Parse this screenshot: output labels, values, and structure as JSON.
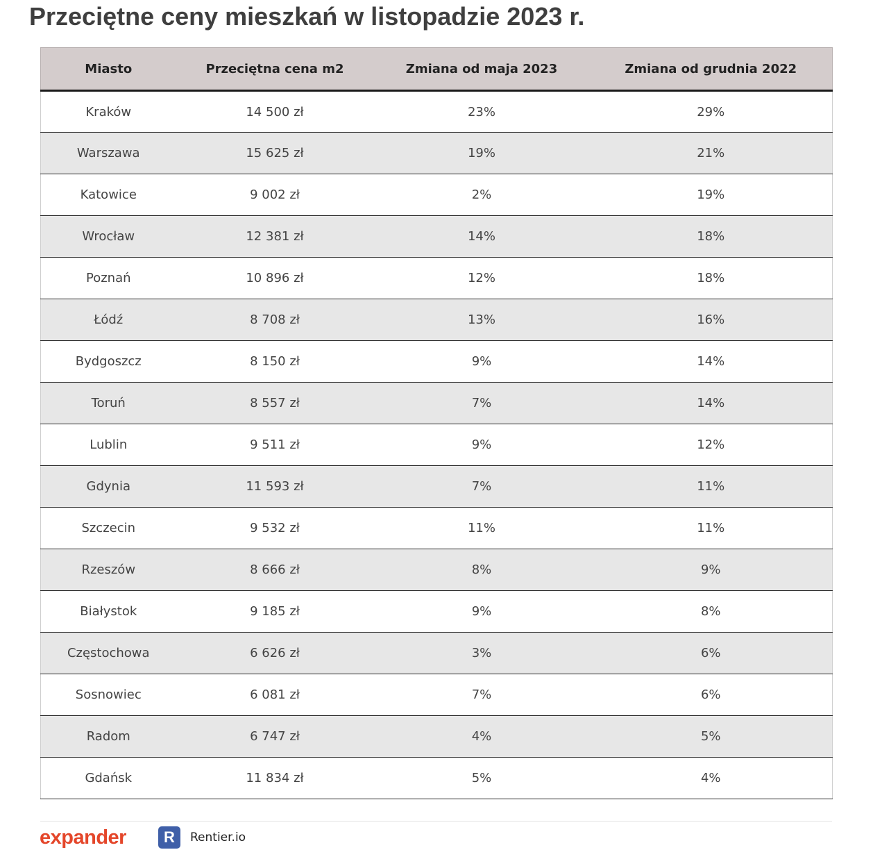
{
  "title": "Przeciętne ceny mieszkań w listopadzie 2023 r.",
  "table": {
    "headers": [
      "Miasto",
      "Przeciętna cena m2",
      "Zmiana od maja 2023",
      "Zmiana od grudnia 2022"
    ],
    "rows": [
      [
        "Kraków",
        "14 500 zł",
        "23%",
        "29%"
      ],
      [
        "Warszawa",
        "15 625 zł",
        "19%",
        "21%"
      ],
      [
        "Katowice",
        "9 002 zł",
        "2%",
        "19%"
      ],
      [
        "Wrocław",
        "12 381 zł",
        "14%",
        "18%"
      ],
      [
        "Poznań",
        "10 896 zł",
        "12%",
        "18%"
      ],
      [
        "Łódź",
        "8 708 zł",
        "13%",
        "16%"
      ],
      [
        "Bydgoszcz",
        "8 150 zł",
        "9%",
        "14%"
      ],
      [
        "Toruń",
        "8 557 zł",
        "7%",
        "14%"
      ],
      [
        "Lublin",
        "9 511 zł",
        "9%",
        "12%"
      ],
      [
        "Gdynia",
        "11 593 zł",
        "7%",
        "11%"
      ],
      [
        "Szczecin",
        "9 532 zł",
        "11%",
        "11%"
      ],
      [
        "Rzeszów",
        "8 666 zł",
        "8%",
        "9%"
      ],
      [
        "Białystok",
        "9 185 zł",
        "9%",
        "8%"
      ],
      [
        "Częstochowa",
        "6 626 zł",
        "3%",
        "6%"
      ],
      [
        "Sosnowiec",
        "6 081 zł",
        "7%",
        "6%"
      ],
      [
        "Radom",
        "6 747 zł",
        "4%",
        "5%"
      ],
      [
        "Gdańsk",
        "11 834 zł",
        "5%",
        "4%"
      ]
    ]
  },
  "footer": {
    "expander_logo_text": "expander",
    "rentier_mark": "R",
    "rentier_name": "Rentier.io"
  },
  "colors": {
    "header_bg": "#d4cccc",
    "stripe_bg": "#e7e7e7",
    "expander_red": "#e4462a",
    "rentier_blue": "#3f5fa8"
  }
}
